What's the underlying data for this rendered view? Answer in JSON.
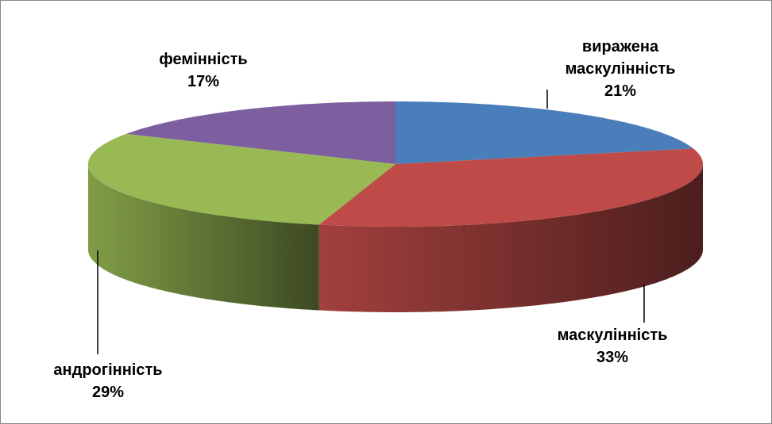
{
  "chart_data": {
    "type": "pie3d",
    "categories": [
      "виражена маскулінність",
      "маскулінність",
      "андрогінність",
      "фемінність"
    ],
    "values": [
      21,
      33,
      29,
      17
    ],
    "value_labels": [
      "21%",
      "33%",
      "29%",
      "17%"
    ],
    "colors": [
      "#4a7ebb",
      "#be4b48",
      "#98b954",
      "#7d5fa0"
    ]
  }
}
